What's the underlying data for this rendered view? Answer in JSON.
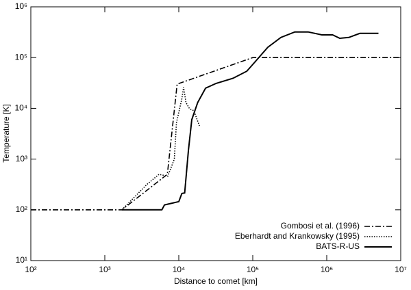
{
  "chart_data": {
    "type": "line",
    "xlabel": "Distance to comet [km]",
    "ylabel": "Temperature [K]",
    "xscale": "log",
    "yscale": "log",
    "xlim": [
      100,
      10000000
    ],
    "ylim": [
      10,
      1000000
    ],
    "xticks": [
      {
        "value": 100,
        "label": "10²"
      },
      {
        "value": 1000,
        "label": "10³"
      },
      {
        "value": 10000,
        "label": "10⁴"
      },
      {
        "value": 100000,
        "label": "10⁵"
      },
      {
        "value": 1000000,
        "label": "10⁶"
      },
      {
        "value": 10000000,
        "label": "10⁷"
      }
    ],
    "yticks": [
      {
        "value": 10,
        "label": "10¹"
      },
      {
        "value": 100,
        "label": "10²"
      },
      {
        "value": 1000,
        "label": "10³"
      },
      {
        "value": 10000,
        "label": "10⁴"
      },
      {
        "value": 100000,
        "label": "10⁵"
      },
      {
        "value": 1000000,
        "label": "10⁶"
      }
    ],
    "legend": "lower right",
    "series": [
      {
        "name": "Gombosi et al. (1996)",
        "color": "#000000",
        "line_style": "dash-dot",
        "x": [
          100,
          1700,
          7000,
          9500,
          100000,
          10000000
        ],
        "values": [
          100,
          100,
          500,
          30000,
          100000,
          100000
        ]
      },
      {
        "name": "Eberhardt and Krankowsky (1995)",
        "color": "#000000",
        "line_style": "dotted",
        "x": [
          1700,
          3700,
          5400,
          7100,
          8700,
          9300,
          11000,
          11600,
          12500,
          14000,
          16000,
          19000
        ],
        "values": [
          100,
          316,
          500,
          460,
          1000,
          5200,
          15500,
          26000,
          13000,
          9800,
          9000,
          4500
        ]
      },
      {
        "name": "BATS-R-US",
        "color": "#000000",
        "line_style": "solid",
        "x": [
          1700,
          5900,
          6400,
          10000,
          11000,
          12000,
          13500,
          15000,
          18000,
          23000,
          32000,
          54000,
          83000,
          110000,
          160000,
          240000,
          370000,
          560000,
          860000,
          1200000,
          1500000,
          2000000,
          2800000,
          5000000
        ],
        "values": [
          100,
          100,
          125,
          145,
          210,
          215,
          1500,
          6000,
          13000,
          25000,
          31000,
          39000,
          54000,
          86000,
          160000,
          250000,
          320000,
          320000,
          280000,
          280000,
          240000,
          250000,
          300000,
          300000
        ]
      }
    ]
  }
}
